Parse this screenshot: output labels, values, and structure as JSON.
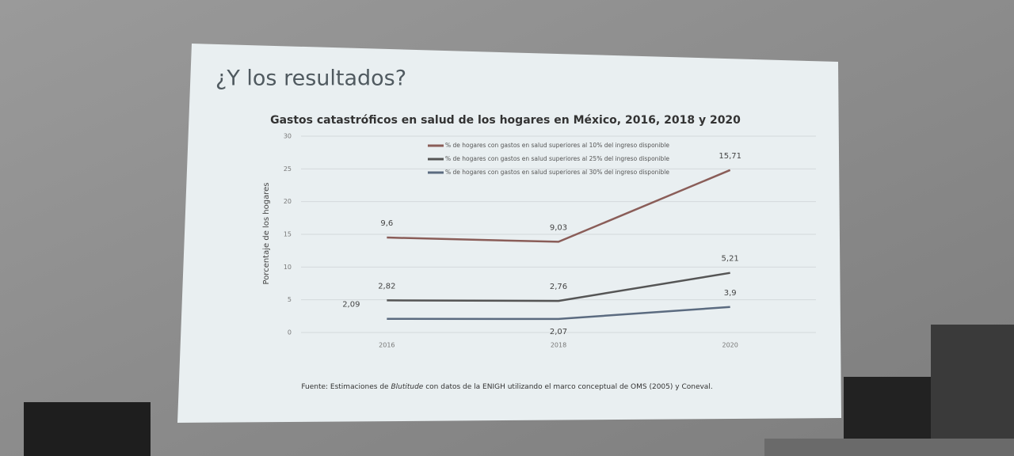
{
  "slide_title": "¿Y los resultados?",
  "chart_data": {
    "type": "line",
    "stacked": true,
    "title": "Gastos catastróficos en salud de los hogares en México, 2016, 2018 y 2020",
    "y_label": "Porcentaje de los hogares",
    "categories": [
      "2016",
      "2018",
      "2020"
    ],
    "series": [
      {
        "name": "% de hogares con gastos en salud superiores al 10% del ingreso disponible",
        "color": "#8a5d58",
        "values": [
          9.6,
          9.03,
          15.71
        ],
        "value_labels": [
          "9,6",
          "9,03",
          "15,71"
        ]
      },
      {
        "name": "% de hogares con gastos en salud superiores al 25% del ingreso disponible",
        "color": "#555555",
        "values": [
          2.82,
          2.76,
          5.21
        ],
        "value_labels": [
          "2,82",
          "2,76",
          "5,21"
        ]
      },
      {
        "name": "% de hogares con gastos en salud superiores al 30% del ingreso disponible",
        "color": "#5b6b80",
        "values": [
          2.09,
          2.07,
          3.9
        ],
        "value_labels": [
          "2,09",
          "2,07",
          "3,9"
        ]
      }
    ],
    "ylim": [
      0,
      30
    ],
    "yticks": [
      0,
      5,
      10,
      15,
      20,
      25,
      30
    ],
    "grid": true,
    "source": [
      "Fuente: Estimaciones de ",
      "Blutitude",
      " con datos de la ENIGH utilizando el marco conceptual de OMS (2005) y Coneval."
    ]
  }
}
